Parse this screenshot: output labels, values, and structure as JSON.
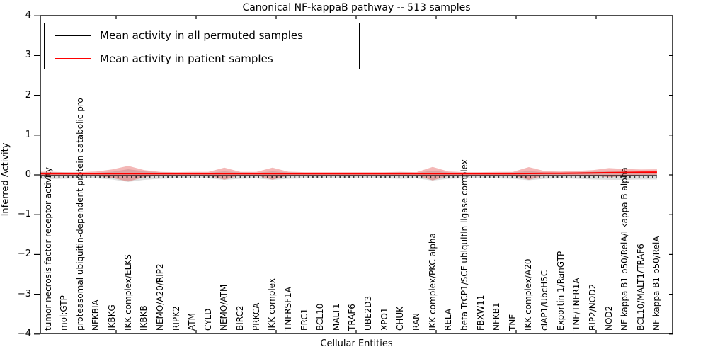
{
  "figure": {
    "title": "Canonical NF-kappaB pathway -- 513 samples",
    "xlabel": "Cellular Entities",
    "ylabel": "Inferred Activity"
  },
  "legend": {
    "entries": [
      {
        "label": "Mean activity in all permuted samples",
        "color": "#000000"
      },
      {
        "label": "Mean activity in patient samples",
        "color": "#ff0000"
      }
    ]
  },
  "chart_data": {
    "type": "line",
    "title": "Canonical NF-kappaB pathway -- 513 samples",
    "xlabel": "Cellular Entities",
    "ylabel": "Inferred Activity",
    "ylim": [
      -4,
      4
    ],
    "ytick_values": [
      4,
      3,
      2,
      1,
      0,
      -1,
      -2,
      -3,
      -4
    ],
    "ytick_labels": [
      "4",
      "3",
      "2",
      "1",
      "0",
      "−1",
      "−2",
      "−3",
      "−4"
    ],
    "zero_reference_line": 0,
    "grid": false,
    "legend_position": "upper left",
    "categories": [
      "tumor necrosis factor receptor activity",
      "mol:GTP",
      "proteasomal ubiquitin-dependent protein catabolic pro",
      "NFKBIA",
      "IKBKG",
      "IKK complex/ELKS",
      "IKBKB",
      "NEMO/A20/RIP2",
      "RIPK2",
      "ATM",
      "CYLD",
      "NEMO/ATM",
      "BIRC2",
      "PRKCA",
      "IKK complex",
      "TNFRSF1A",
      "ERC1",
      "BCL10",
      "MALT1",
      "TRAF6",
      "UBE2D3",
      "XPO1",
      "CHUK",
      "RAN",
      "IKK complex/PKC alpha",
      "RELA",
      "beta TrCP1/SCF ubiquitin ligase complex",
      "FBXW11",
      "NFKB1",
      "TNF",
      "IKK complex/A20",
      "cIAP1/UbcH5C",
      "Exportin 1/RanGTP",
      "TNF/TNFR1A",
      "RIP2/NOD2",
      "NOD2",
      "NF kappa B1 p50/RelA/I kappa B alpha",
      "BCL10/MALT1/TRAF6",
      "NF kappa B1 p50/RelA"
    ],
    "series": [
      {
        "name": "Mean activity in all permuted samples",
        "line_color": "#000000",
        "band_color": "rgba(110,110,110,0.22)",
        "means": [
          -0.018,
          -0.018,
          -0.018,
          -0.018,
          -0.018,
          -0.018,
          -0.018,
          -0.018,
          -0.018,
          -0.018,
          -0.018,
          -0.018,
          -0.018,
          -0.018,
          -0.018,
          -0.018,
          -0.018,
          -0.018,
          -0.018,
          -0.018,
          -0.018,
          -0.018,
          -0.018,
          -0.018,
          -0.018,
          -0.018,
          -0.018,
          -0.018,
          -0.018,
          -0.018,
          -0.018,
          -0.018,
          -0.018,
          -0.018,
          -0.018,
          -0.018,
          -0.018,
          -0.018,
          -0.018
        ],
        "stds": [
          0.089,
          0.08,
          0.071,
          0.071,
          0.098,
          0.16,
          0.107,
          0.08,
          0.071,
          0.071,
          0.071,
          0.107,
          0.08,
          0.071,
          0.107,
          0.08,
          0.071,
          0.071,
          0.071,
          0.071,
          0.071,
          0.071,
          0.08,
          0.071,
          0.125,
          0.08,
          0.071,
          0.071,
          0.071,
          0.08,
          0.116,
          0.08,
          0.071,
          0.08,
          0.098,
          0.107,
          0.107,
          0.098,
          0.098
        ]
      },
      {
        "name": "Mean activity in patient samples",
        "line_color": "#ff0000",
        "band_color": "rgba(222,35,30,0.32)",
        "means": [
          0.03,
          0.03,
          0.03,
          0.03,
          0.03,
          0.03,
          0.03,
          0.03,
          0.03,
          0.03,
          0.03,
          0.03,
          0.03,
          0.03,
          0.03,
          0.03,
          0.03,
          0.03,
          0.03,
          0.03,
          0.03,
          0.03,
          0.03,
          0.03,
          0.03,
          0.03,
          0.03,
          0.03,
          0.03,
          0.03,
          0.035,
          0.04,
          0.04,
          0.045,
          0.05,
          0.055,
          0.06,
          0.065,
          0.07
        ],
        "stds": [
          0.05,
          0.04,
          0.04,
          0.055,
          0.107,
          0.196,
          0.089,
          0.045,
          0.04,
          0.045,
          0.045,
          0.151,
          0.045,
          0.045,
          0.151,
          0.05,
          0.04,
          0.04,
          0.04,
          0.04,
          0.04,
          0.04,
          0.045,
          0.04,
          0.169,
          0.055,
          0.04,
          0.04,
          0.045,
          0.045,
          0.16,
          0.055,
          0.045,
          0.055,
          0.071,
          0.116,
          0.089,
          0.071,
          0.071
        ]
      }
    ]
  }
}
